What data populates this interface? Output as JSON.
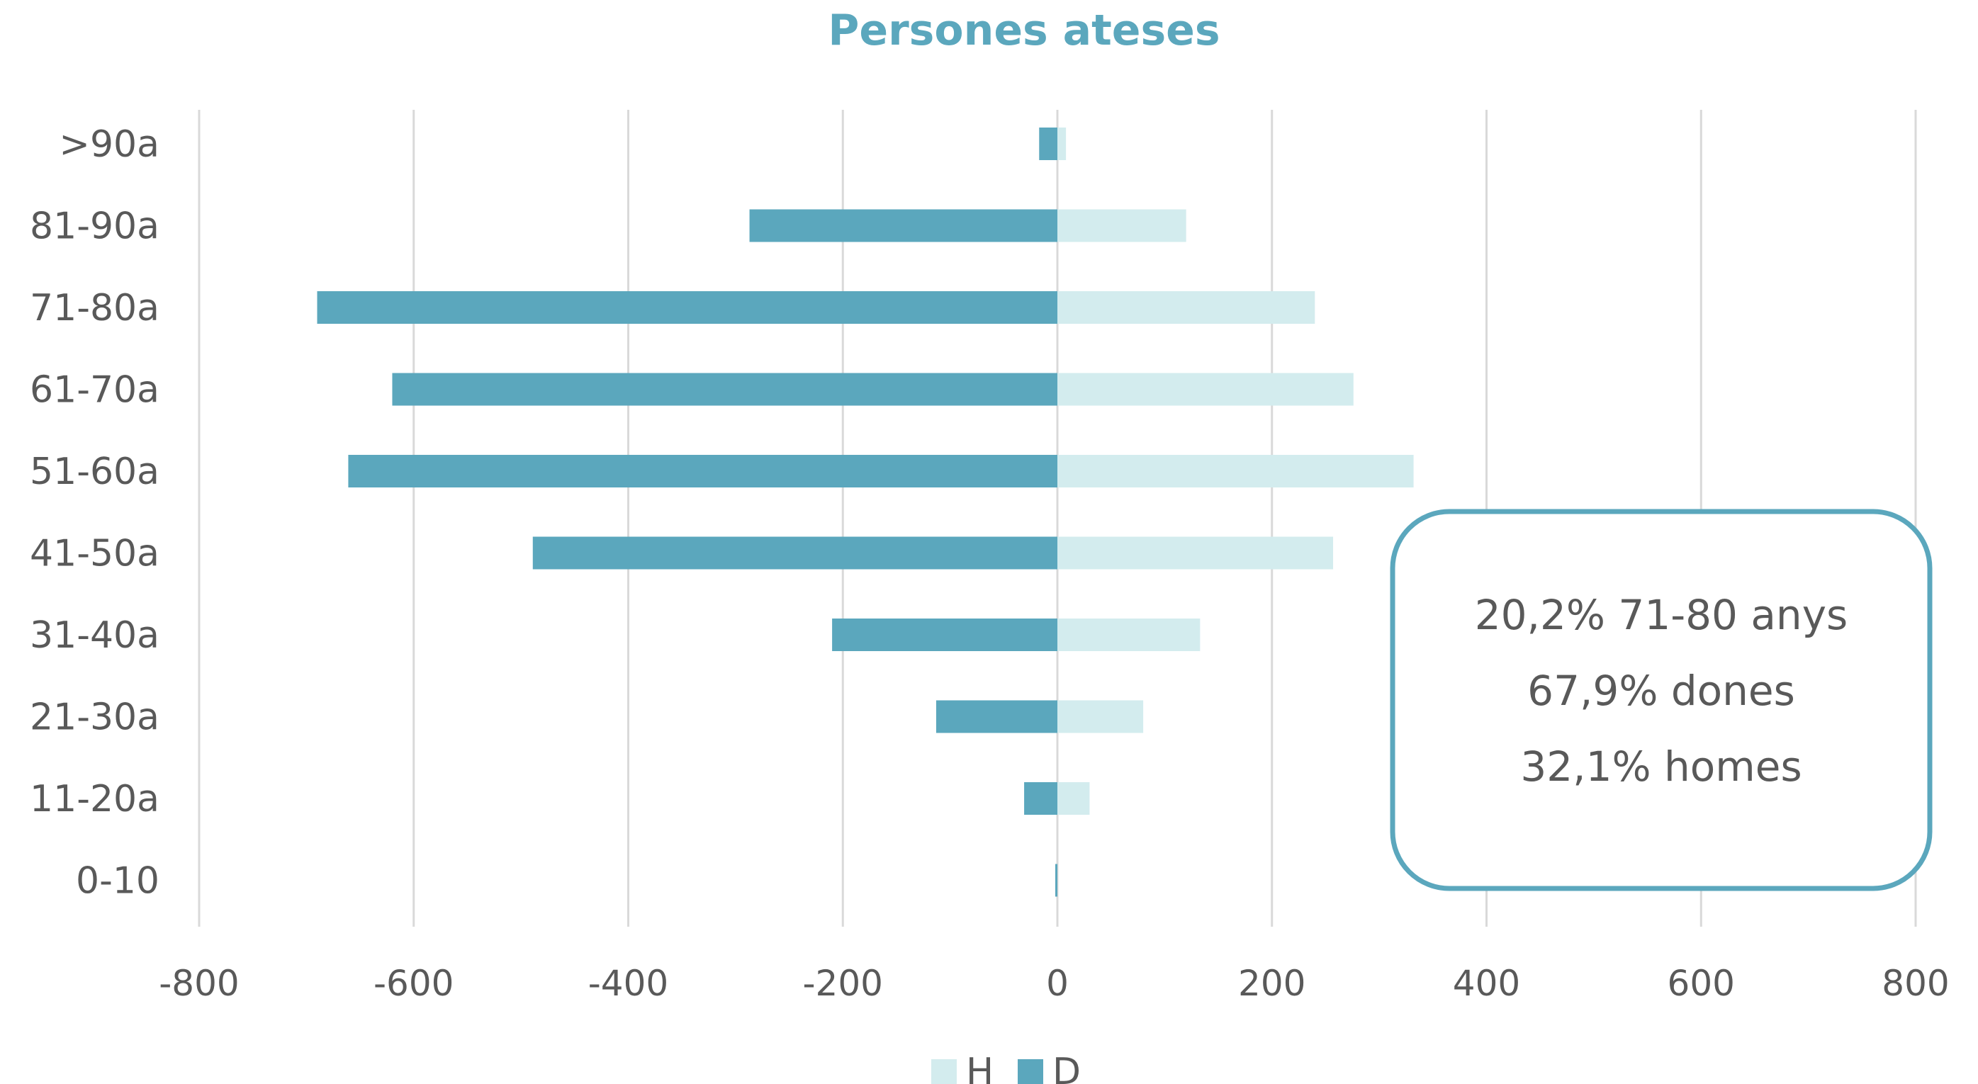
{
  "chart_data": {
    "type": "bar",
    "orientation": "horizontal",
    "title": "Persones ateses",
    "categories": [
      ">90a",
      "81-90a",
      "71-80a",
      "61-70a",
      "51-60a",
      "41-50a",
      "31-40a",
      "21-30a",
      "11-20a",
      "0-10"
    ],
    "series": [
      {
        "name": "H",
        "values": [
          8,
          120,
          240,
          276,
          332,
          257,
          133,
          80,
          30,
          0
        ]
      },
      {
        "name": "D",
        "values": [
          -17,
          -287,
          -690,
          -620,
          -661,
          -489,
          -210,
          -113,
          -31,
          -2
        ]
      }
    ],
    "xlim": [
      -800,
      800
    ],
    "xticks": [
      "-800",
      "-600",
      "-400",
      "-200",
      "0",
      "200",
      "400",
      "600",
      "800"
    ],
    "grid": true,
    "legend_position": "bottom",
    "colors": {
      "H": "#d3ecee",
      "D": "#5ba7bd",
      "title": "#5ba7bd",
      "grid": "#d9d9d9",
      "box_border": "#5ba7bd"
    },
    "annotation": [
      "20,2% 71-80 anys",
      "67,9% dones",
      "32,1% homes"
    ]
  }
}
